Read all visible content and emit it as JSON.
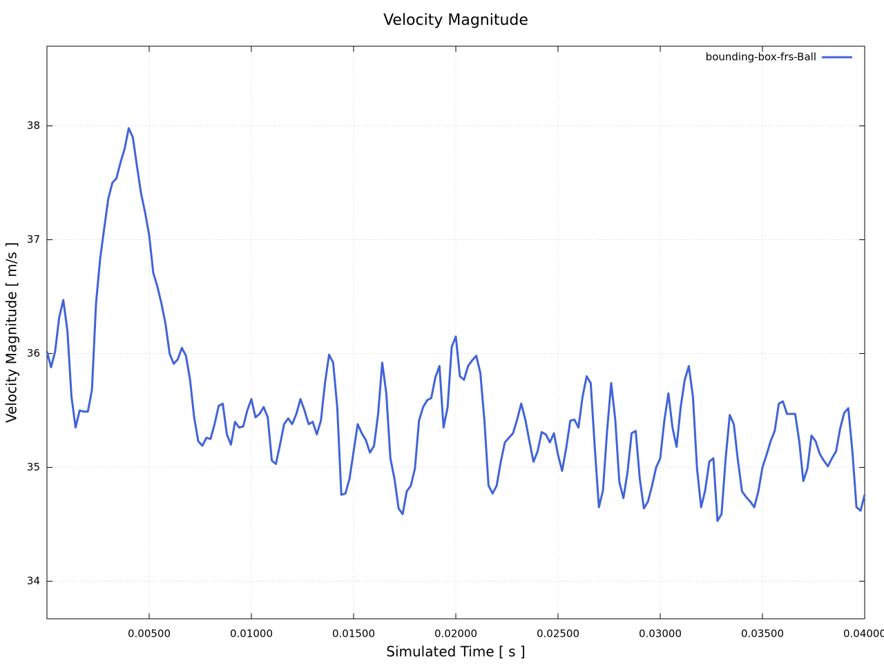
{
  "chart_data": {
    "type": "line",
    "title": "Velocity Magnitude",
    "x_label": "Simulated Time [ s ]",
    "y_label": "Velocity Magnitude [ m/s ]",
    "xlim": [
      0,
      0.04
    ],
    "ylim": [
      33.67,
      38.7
    ],
    "xticks": [
      {
        "value": 0.005,
        "label": "0.00500"
      },
      {
        "value": 0.01,
        "label": "0.01000"
      },
      {
        "value": 0.015,
        "label": "0.01500"
      },
      {
        "value": 0.02,
        "label": "0.02000"
      },
      {
        "value": 0.025,
        "label": "0.02500"
      },
      {
        "value": 0.03,
        "label": "0.03000"
      },
      {
        "value": 0.035,
        "label": "0.03500"
      },
      {
        "value": 0.04,
        "label": "0.04000"
      }
    ],
    "yticks": [
      34,
      35,
      36,
      37,
      38
    ],
    "grid": true,
    "legend": "top-right",
    "x": [
      0,
      0.0002,
      0.0004,
      0.0006,
      0.0008,
      0.001,
      0.0012,
      0.0014,
      0.0016,
      0.0018,
      0.002,
      0.0022,
      0.0024,
      0.0026,
      0.0028,
      0.003,
      0.0032,
      0.0034,
      0.0036,
      0.0038,
      0.004,
      0.0042,
      0.0044,
      0.0046,
      0.0048,
      0.005,
      0.0052,
      0.0054,
      0.0056,
      0.0058,
      0.006,
      0.0062,
      0.0064,
      0.0066,
      0.0068,
      0.007,
      0.0072,
      0.0074,
      0.0076,
      0.0078,
      0.008,
      0.0082,
      0.0084,
      0.0086,
      0.0088,
      0.009,
      0.0092,
      0.0094,
      0.0096,
      0.0098,
      0.01,
      0.0102,
      0.0104,
      0.0106,
      0.0108,
      0.011,
      0.0112,
      0.0114,
      0.0116,
      0.0118,
      0.012,
      0.0122,
      0.0124,
      0.0126,
      0.0128,
      0.013,
      0.0132,
      0.0134,
      0.0136,
      0.0138,
      0.014,
      0.0142,
      0.0144,
      0.0146,
      0.0148,
      0.015,
      0.0152,
      0.0154,
      0.0156,
      0.0158,
      0.016,
      0.0162,
      0.0164,
      0.0166,
      0.0168,
      0.017,
      0.0172,
      0.0174,
      0.0176,
      0.0178,
      0.018,
      0.0182,
      0.0184,
      0.0186,
      0.0188,
      0.019,
      0.0192,
      0.0194,
      0.0196,
      0.0198,
      0.02,
      0.0202,
      0.0204,
      0.0206,
      0.0208,
      0.021,
      0.0212,
      0.0214,
      0.0216,
      0.0218,
      0.022,
      0.0222,
      0.0224,
      0.0226,
      0.0228,
      0.023,
      0.0232,
      0.0234,
      0.0236,
      0.0238,
      0.024,
      0.0242,
      0.0244,
      0.0246,
      0.0248,
      0.025,
      0.0252,
      0.0254,
      0.0256,
      0.0258,
      0.026,
      0.0262,
      0.0264,
      0.0266,
      0.0268,
      0.027,
      0.0272,
      0.0274,
      0.0276,
      0.0278,
      0.028,
      0.0282,
      0.0284,
      0.0286,
      0.0288,
      0.029,
      0.0292,
      0.0294,
      0.0296,
      0.0298,
      0.03,
      0.0302,
      0.0304,
      0.0306,
      0.0308,
      0.031,
      0.0312,
      0.0314,
      0.0316,
      0.0318,
      0.032,
      0.0322,
      0.0324,
      0.0326,
      0.0328,
      0.033,
      0.0332,
      0.0334,
      0.0336,
      0.0338,
      0.034,
      0.0342,
      0.0344,
      0.0346,
      0.0348,
      0.035,
      0.0352,
      0.0354,
      0.0356,
      0.0358,
      0.036,
      0.0362,
      0.0364,
      0.0366,
      0.0368,
      0.037,
      0.0372,
      0.0374,
      0.0376,
      0.0378,
      0.038,
      0.0382,
      0.0384,
      0.0386,
      0.0388,
      0.039,
      0.0392,
      0.0394,
      0.0396,
      0.0398,
      0.04
    ],
    "series": [
      {
        "name": "bounding-box-frs-Ball",
        "color": "#4063d8",
        "values": [
          36.02,
          35.88,
          36.02,
          36.32,
          36.47,
          36.2,
          35.62,
          35.35,
          35.5,
          35.49,
          35.49,
          35.68,
          36.44,
          36.83,
          37.1,
          37.36,
          37.5,
          37.54,
          37.68,
          37.8,
          37.98,
          37.9,
          37.65,
          37.41,
          37.24,
          37.04,
          36.71,
          36.59,
          36.44,
          36.26,
          36.0,
          35.91,
          35.95,
          36.05,
          35.98,
          35.77,
          35.44,
          35.23,
          35.19,
          35.26,
          35.25,
          35.38,
          35.54,
          35.56,
          35.29,
          35.2,
          35.4,
          35.35,
          35.36,
          35.5,
          35.6,
          35.44,
          35.47,
          35.53,
          35.44,
          35.06,
          35.03,
          35.2,
          35.38,
          35.43,
          35.38,
          35.47,
          35.6,
          35.5,
          35.38,
          35.4,
          35.29,
          35.41,
          35.74,
          35.99,
          35.92,
          35.53,
          34.76,
          34.77,
          34.9,
          35.14,
          35.38,
          35.3,
          35.24,
          35.13,
          35.19,
          35.47,
          35.92,
          35.65,
          35.08,
          34.9,
          34.64,
          34.59,
          34.79,
          34.84,
          34.99,
          35.41,
          35.53,
          35.59,
          35.61,
          35.79,
          35.89,
          35.35,
          35.53,
          36.06,
          36.15,
          35.8,
          35.77,
          35.89,
          35.94,
          35.98,
          35.83,
          35.41,
          34.84,
          34.77,
          34.84,
          35.05,
          35.22,
          35.26,
          35.3,
          35.42,
          35.56,
          35.42,
          35.23,
          35.05,
          35.14,
          35.31,
          35.29,
          35.22,
          35.3,
          35.11,
          34.97,
          35.17,
          35.41,
          35.42,
          35.35,
          35.62,
          35.8,
          35.74,
          35.17,
          34.65,
          34.8,
          35.32,
          35.74,
          35.42,
          34.87,
          34.73,
          34.96,
          35.3,
          35.32,
          34.9,
          34.64,
          34.7,
          34.84,
          35.0,
          35.08,
          35.41,
          35.65,
          35.35,
          35.18,
          35.53,
          35.77,
          35.89,
          35.62,
          34.99,
          34.65,
          34.8,
          35.05,
          35.08,
          34.53,
          34.59,
          35.08,
          35.46,
          35.38,
          35.06,
          34.79,
          34.74,
          34.7,
          34.65,
          34.79,
          35.0,
          35.11,
          35.23,
          35.32,
          35.56,
          35.58,
          35.47,
          35.47,
          35.47,
          35.23,
          34.88,
          34.99,
          35.28,
          35.23,
          35.12,
          35.06,
          35.01,
          35.08,
          35.14,
          35.34,
          35.48,
          35.52,
          35.14,
          34.65,
          34.62,
          34.76
        ]
      }
    ]
  }
}
